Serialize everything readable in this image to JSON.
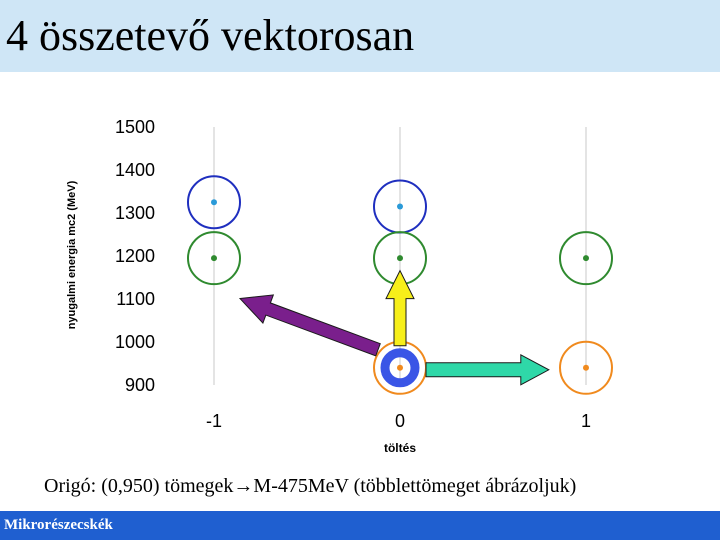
{
  "slide": {
    "title": "4 összetevő vektorosan",
    "caption": "Origó: (0,950) tömegek→M-475MeV (többlettömeget ábrázoljuk)",
    "footer": "Mikrorészecskék"
  },
  "colors": {
    "title_bar": "#cfe6f6",
    "footer_bar": "#1f5fd0",
    "blue_ring": "#1f2fbf",
    "green_ring": "#2f8a2f",
    "orange_ring": "#f08a1e",
    "inner_blue_ring": "#3a55e6",
    "purple_arrow": "#7a1f8c",
    "yellow_arrow": "#f7ef1a",
    "teal_arrow": "#2fd8a8"
  },
  "chart_data": {
    "type": "scatter",
    "title": "",
    "xlabel": "töltés",
    "ylabel": "nyugalmi energia mc2 (MeV)",
    "xlim": [
      -1.5,
      1.5
    ],
    "ylim": [
      900,
      1500
    ],
    "x_ticks": [
      -1,
      0,
      1
    ],
    "x_tick_labels": [
      "-1",
      "0",
      "1"
    ],
    "y_ticks": [
      900,
      1000,
      1100,
      1200,
      1300,
      1400,
      1500
    ],
    "y_tick_labels": [
      "900",
      "1000",
      "1100",
      "1200",
      "1300",
      "1400",
      "1500"
    ],
    "grid": "vertical",
    "points": [
      {
        "x": -1,
        "y": 1325,
        "ring": "blue"
      },
      {
        "x": 0,
        "y": 1315,
        "ring": "blue"
      },
      {
        "x": -1,
        "y": 1195,
        "ring": "green"
      },
      {
        "x": 0,
        "y": 1195,
        "ring": "green"
      },
      {
        "x": 1,
        "y": 1195,
        "ring": "green"
      },
      {
        "x": 0,
        "y": 940,
        "ring": "orange"
      },
      {
        "x": 1,
        "y": 940,
        "ring": "orange"
      }
    ],
    "vectors": [
      {
        "from": [
          0,
          950
        ],
        "to": [
          -1,
          1115
        ],
        "color": "purple"
      },
      {
        "from": [
          0,
          950
        ],
        "to": [
          0,
          1180
        ],
        "color": "yellow"
      },
      {
        "from": [
          0,
          950
        ],
        "to": [
          0.8,
          950
        ],
        "color": "teal"
      }
    ]
  }
}
